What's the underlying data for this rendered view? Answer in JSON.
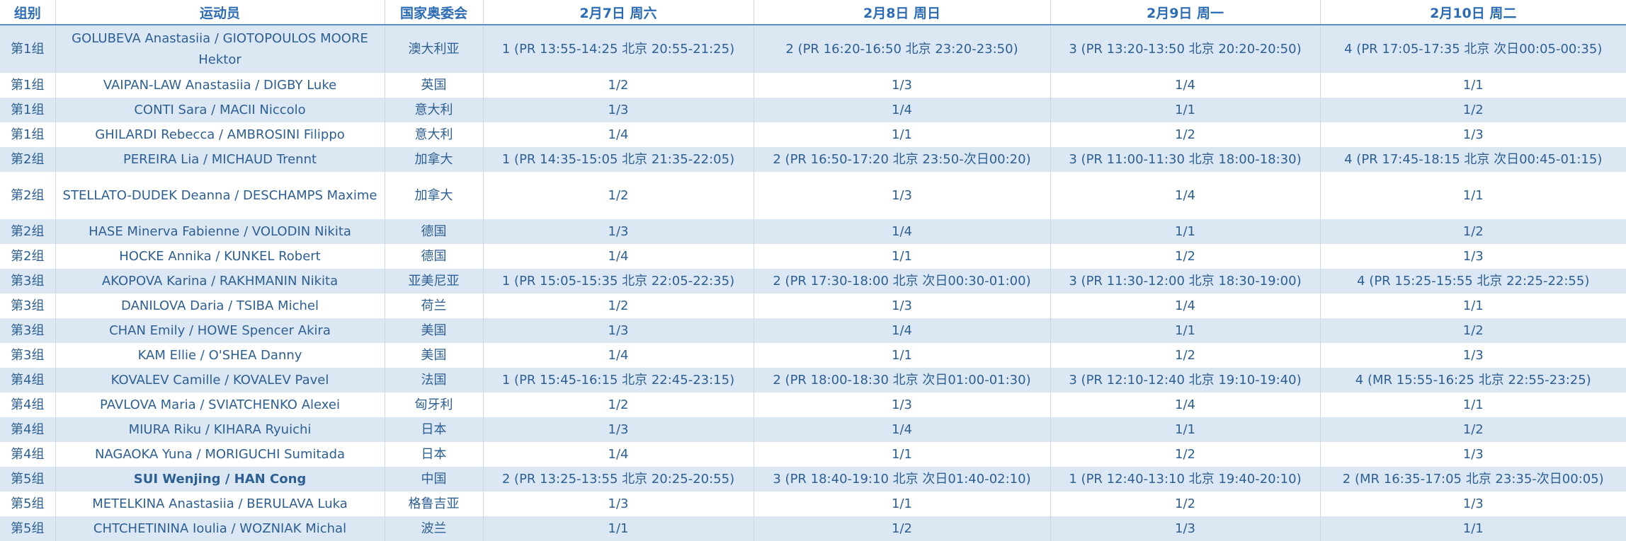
{
  "table": {
    "headers": [
      "组别",
      "运动员",
      "国家奥委会",
      "2月7日 周六",
      "2月8日 周日",
      "2月9日 周一",
      "2月10日 周二"
    ],
    "rows": [
      [
        "第1组",
        "GOLUBEVA Anastasiia / GIOTOPOULOS MOORE Hektor",
        "澳大利亚",
        "1 (PR 13:55-14:25 北京 20:55-21:25)",
        "2 (PR 16:20-16:50 北京 23:20-23:50)",
        "3 (PR 13:20-13:50 北京 20:20-20:50)",
        "4 (PR 17:05-17:35 北京 次日00:05-00:35)"
      ],
      [
        "第1组",
        "VAIPAN-LAW Anastasiia / DIGBY Luke",
        "英国",
        "1/2",
        "1/3",
        "1/4",
        "1/1"
      ],
      [
        "第1组",
        "CONTI Sara / MACII Niccolo",
        "意大利",
        "1/3",
        "1/4",
        "1/1",
        "1/2"
      ],
      [
        "第1组",
        "GHILARDI Rebecca / AMBROSINI Filippo",
        "意大利",
        "1/4",
        "1/1",
        "1/2",
        "1/3"
      ],
      [
        "第2组",
        "PEREIRA Lia / MICHAUD Trennt",
        "加拿大",
        "1 (PR 14:35-15:05 北京 21:35-22:05)",
        "2 (PR 16:50-17:20 北京 23:50-次日00:20)",
        "3 (PR 11:00-11:30 北京 18:00-18:30)",
        "4 (PR 17:45-18:15 北京 次日00:45-01:15)"
      ],
      [
        "第2组",
        "STELLATO-DUDEK Deanna / DESCHAMPS Maxime",
        "加拿大",
        "1/2",
        "1/3",
        "1/4",
        "1/1"
      ],
      [
        "第2组",
        "HASE Minerva Fabienne / VOLODIN Nikita",
        "德国",
        "1/3",
        "1/4",
        "1/1",
        "1/2"
      ],
      [
        "第2组",
        "HOCKE Annika / KUNKEL Robert",
        "德国",
        "1/4",
        "1/1",
        "1/2",
        "1/3"
      ],
      [
        "第3组",
        "AKOPOVA Karina / RAKHMANIN Nikita",
        "亚美尼亚",
        "1 (PR 15:05-15:35 北京 22:05-22:35)",
        "2 (PR 17:30-18:00 北京 次日00:30-01:00)",
        "3 (PR 11:30-12:00 北京 18:30-19:00)",
        "4 (PR 15:25-15:55 北京 22:25-22:55)"
      ],
      [
        "第3组",
        "DANILOVA Daria / TSIBA Michel",
        "荷兰",
        "1/2",
        "1/3",
        "1/4",
        "1/1"
      ],
      [
        "第3组",
        "CHAN Emily / HOWE Spencer Akira",
        "美国",
        "1/3",
        "1/4",
        "1/1",
        "1/2"
      ],
      [
        "第3组",
        "KAM Ellie / O'SHEA Danny",
        "美国",
        "1/4",
        "1/1",
        "1/2",
        "1/3"
      ],
      [
        "第4组",
        "KOVALEV Camille / KOVALEV Pavel",
        "法国",
        "1 (PR 15:45-16:15 北京 22:45-23:15)",
        "2 (PR 18:00-18:30 北京 次日01:00-01:30)",
        "3 (PR 12:10-12:40 北京 19:10-19:40)",
        "4 (MR 15:55-16:25 北京 22:55-23:25)"
      ],
      [
        "第4组",
        "PAVLOVA Maria / SVIATCHENKO Alexei",
        "匈牙利",
        "1/2",
        "1/3",
        "1/4",
        "1/1"
      ],
      [
        "第4组",
        "MIURA Riku / KIHARA Ryuichi",
        "日本",
        "1/3",
        "1/4",
        "1/1",
        "1/2"
      ],
      [
        "第4组",
        "NAGAOKA Yuna / MORIGUCHI Sumitada",
        "日本",
        "1/4",
        "1/1",
        "1/2",
        "1/3"
      ],
      [
        "第5组",
        "SUI Wenjing / HAN Cong",
        "中国",
        "2 (PR 13:25-13:55 北京 20:25-20:55)",
        "3 (PR 18:40-19:10 北京 次日01:40-02:10)",
        "1 (PR 12:40-13:10 北京 19:40-20:10)",
        "2 (MR 16:35-17:05 北京 23:35-次日00:05)"
      ],
      [
        "第5组",
        "METELKINA Anastasiia / BERULAVA Luka",
        "格鲁吉亚",
        "1/3",
        "1/1",
        "1/2",
        "1/3"
      ],
      [
        "第5组",
        "CHTCHETININA Ioulia / WOZNIAK Michal",
        "波兰",
        "1/1",
        "1/2",
        "1/3",
        "1/1"
      ]
    ]
  }
}
